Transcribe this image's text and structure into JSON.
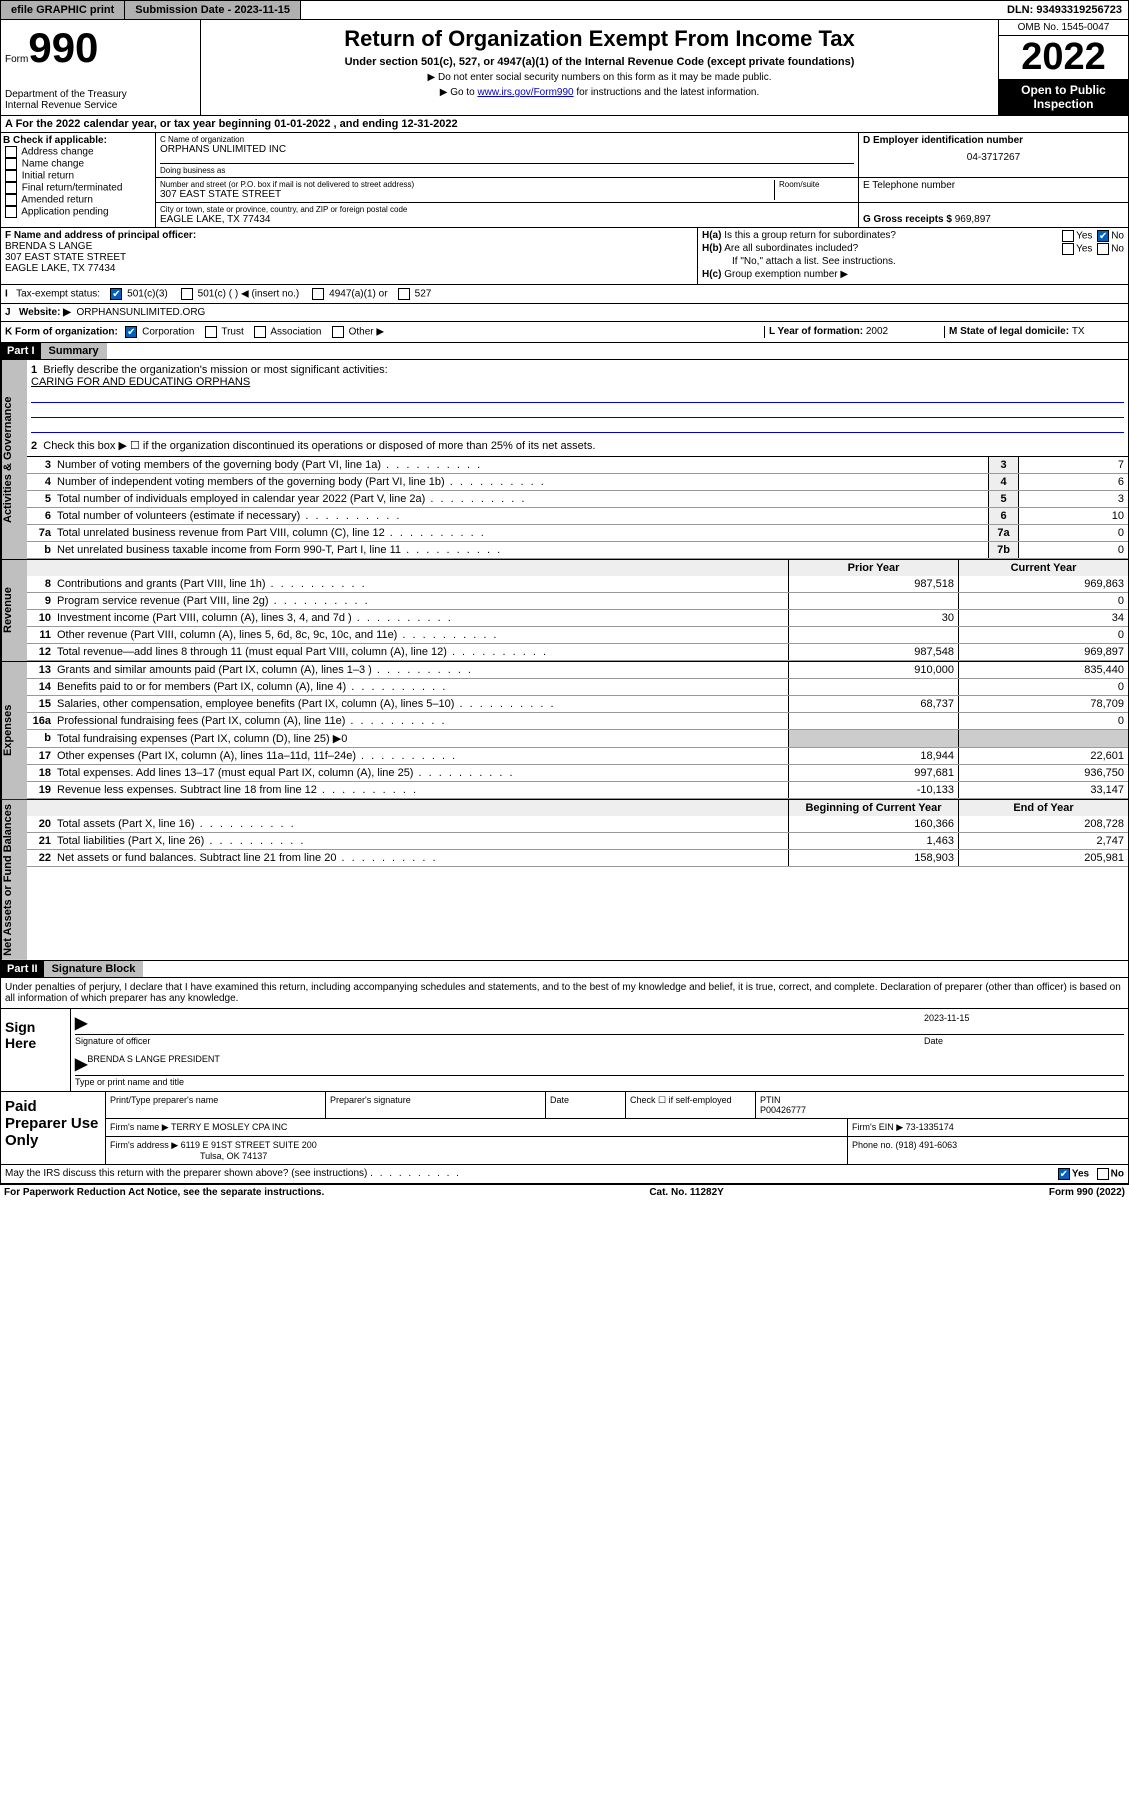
{
  "topbar": {
    "efile": "efile GRAPHIC print",
    "submission_label": "Submission Date - ",
    "submission_date": "2023-11-15",
    "dln_label": "DLN: ",
    "dln": "93493319256723"
  },
  "header": {
    "form_word": "Form",
    "form_num": "990",
    "dept": "Department of the Treasury\nInternal Revenue Service",
    "title": "Return of Organization Exempt From Income Tax",
    "sub1": "Under section 501(c), 527, or 4947(a)(1) of the Internal Revenue Code (except private foundations)",
    "sub2": "▶ Do not enter social security numbers on this form as it may be made public.",
    "sub3_prefix": "▶ Go to ",
    "sub3_link": "www.irs.gov/Form990",
    "sub3_suffix": " for instructions and the latest information.",
    "omb": "OMB No. 1545-0047",
    "year": "2022",
    "open": "Open to Public Inspection"
  },
  "row_a": "A For the 2022 calendar year, or tax year beginning 01-01-2022   , and ending 12-31-2022",
  "col_b": {
    "label": "B Check if applicable:",
    "opts": [
      "Address change",
      "Name change",
      "Initial return",
      "Final return/terminated",
      "Amended return",
      "Application pending"
    ]
  },
  "box_c_label": "C Name of organization",
  "org_name": "ORPHANS UNLIMITED INC",
  "dba_label": "Doing business as",
  "street_label": "Number and street (or P.O. box if mail is not delivered to street address)",
  "room_label": "Room/suite",
  "street": "307 EAST STATE STREET",
  "city_label": "City or town, state or province, country, and ZIP or foreign postal code",
  "city": "EAGLE LAKE, TX  77434",
  "box_d_label": "D Employer identification number",
  "ein": "04-3717267",
  "box_e_label": "E Telephone number",
  "box_g_label": "G Gross receipts $ ",
  "gross_receipts": "969,897",
  "box_f_label": "F Name and address of principal officer:",
  "officer_name": "BRENDA S LANGE",
  "officer_addr1": "307 EAST STATE STREET",
  "officer_addr2": "EAGLE LAKE, TX  77434",
  "h_a": "Is this a group return for subordinates?",
  "h_b": "Are all subordinates included?",
  "h_b_note": "If \"No,\" attach a list. See instructions.",
  "h_c": "Group exemption number ▶",
  "yes": "Yes",
  "no": "No",
  "row_i_label": "Tax-exempt status:",
  "i_501c3": "501(c)(3)",
  "i_501c": "501(c) (   ) ◀ (insert no.)",
  "i_4947": "4947(a)(1) or",
  "i_527": "527",
  "row_j_label": "Website: ▶",
  "website": "ORPHANSUNLIMITED.ORG",
  "row_k_label": "K Form of organization:",
  "k_corp": "Corporation",
  "k_trust": "Trust",
  "k_assoc": "Association",
  "k_other": "Other ▶",
  "l_label": "L Year of formation: ",
  "l_year": "2002",
  "m_label": "M State of legal domicile: ",
  "m_state": "TX",
  "part1_hdr": "Part I",
  "part1_title": "Summary",
  "q1_label": "Briefly describe the organization's mission or most significant activities:",
  "mission": "CARING FOR AND EDUCATING ORPHANS",
  "q2": "Check this box ▶ ☐  if the organization discontinued its operations or disposed of more than 25% of its net assets.",
  "vtabs": {
    "gov": "Activities & Governance",
    "rev": "Revenue",
    "exp": "Expenses",
    "net": "Net Assets or Fund Balances"
  },
  "gov_lines": [
    {
      "n": "3",
      "d": "Number of voting members of the governing body (Part VI, line 1a)",
      "b": "3",
      "v": "7"
    },
    {
      "n": "4",
      "d": "Number of independent voting members of the governing body (Part VI, line 1b)",
      "b": "4",
      "v": "6"
    },
    {
      "n": "5",
      "d": "Total number of individuals employed in calendar year 2022 (Part V, line 2a)",
      "b": "5",
      "v": "3"
    },
    {
      "n": "6",
      "d": "Total number of volunteers (estimate if necessary)",
      "b": "6",
      "v": "10"
    },
    {
      "n": "7a",
      "d": "Total unrelated business revenue from Part VIII, column (C), line 12",
      "b": "7a",
      "v": "0"
    },
    {
      "n": "b",
      "d": "Net unrelated business taxable income from Form 990-T, Part I, line 11",
      "b": "7b",
      "v": "0"
    }
  ],
  "cols_hdr": {
    "prior": "Prior Year",
    "current": "Current Year",
    "begin": "Beginning of Current Year",
    "end": "End of Year"
  },
  "rev_lines": [
    {
      "n": "8",
      "d": "Contributions and grants (Part VIII, line 1h)",
      "p": "987,518",
      "c": "969,863"
    },
    {
      "n": "9",
      "d": "Program service revenue (Part VIII, line 2g)",
      "p": "",
      "c": "0"
    },
    {
      "n": "10",
      "d": "Investment income (Part VIII, column (A), lines 3, 4, and 7d )",
      "p": "30",
      "c": "34"
    },
    {
      "n": "11",
      "d": "Other revenue (Part VIII, column (A), lines 5, 6d, 8c, 9c, 10c, and 11e)",
      "p": "",
      "c": "0"
    },
    {
      "n": "12",
      "d": "Total revenue—add lines 8 through 11 (must equal Part VIII, column (A), line 12)",
      "p": "987,548",
      "c": "969,897"
    }
  ],
  "exp_lines": [
    {
      "n": "13",
      "d": "Grants and similar amounts paid (Part IX, column (A), lines 1–3 )",
      "p": "910,000",
      "c": "835,440"
    },
    {
      "n": "14",
      "d": "Benefits paid to or for members (Part IX, column (A), line 4)",
      "p": "",
      "c": "0"
    },
    {
      "n": "15",
      "d": "Salaries, other compensation, employee benefits (Part IX, column (A), lines 5–10)",
      "p": "68,737",
      "c": "78,709"
    },
    {
      "n": "16a",
      "d": "Professional fundraising fees (Part IX, column (A), line 11e)",
      "p": "",
      "c": "0"
    },
    {
      "n": "b",
      "d": "Total fundraising expenses (Part IX, column (D), line 25) ▶0",
      "p": "—",
      "c": "—"
    },
    {
      "n": "17",
      "d": "Other expenses (Part IX, column (A), lines 11a–11d, 11f–24e)",
      "p": "18,944",
      "c": "22,601"
    },
    {
      "n": "18",
      "d": "Total expenses. Add lines 13–17 (must equal Part IX, column (A), line 25)",
      "p": "997,681",
      "c": "936,750"
    },
    {
      "n": "19",
      "d": "Revenue less expenses. Subtract line 18 from line 12",
      "p": "-10,133",
      "c": "33,147"
    }
  ],
  "net_lines": [
    {
      "n": "20",
      "d": "Total assets (Part X, line 16)",
      "p": "160,366",
      "c": "208,728"
    },
    {
      "n": "21",
      "d": "Total liabilities (Part X, line 26)",
      "p": "1,463",
      "c": "2,747"
    },
    {
      "n": "22",
      "d": "Net assets or fund balances. Subtract line 21 from line 20",
      "p": "158,903",
      "c": "205,981"
    }
  ],
  "part2_hdr": "Part II",
  "part2_title": "Signature Block",
  "perjury": "Under penalties of perjury, I declare that I have examined this return, including accompanying schedules and statements, and to the best of my knowledge and belief, it is true, correct, and complete. Declaration of preparer (other than officer) is based on all information of which preparer has any knowledge.",
  "sign_here": "Sign Here",
  "sig_officer_label": "Signature of officer",
  "sig_date_label": "Date",
  "sig_date": "2023-11-15",
  "sig_name": "BRENDA S LANGE  PRESIDENT",
  "sig_name_label": "Type or print name and title",
  "paid_label": "Paid Preparer Use Only",
  "prep_name_label": "Print/Type preparer's name",
  "prep_sig_label": "Preparer's signature",
  "prep_date_label": "Date",
  "prep_check": "Check ☐ if self-employed",
  "ptin_label": "PTIN",
  "ptin": "P00426777",
  "firm_name_label": "Firm's name  ▶",
  "firm_name": "TERRY E MOSLEY CPA INC",
  "firm_ein_label": "Firm's EIN ▶",
  "firm_ein": "73-1335174",
  "firm_addr_label": "Firm's address ▶",
  "firm_addr": "6119 E 91ST STREET SUITE 200",
  "firm_city": "Tulsa, OK  74137",
  "phone_label": "Phone no. ",
  "phone": "(918) 491-6063",
  "discuss": "May the IRS discuss this return with the preparer shown above? (see instructions)",
  "footer_left": "For Paperwork Reduction Act Notice, see the separate instructions.",
  "footer_mid": "Cat. No. 11282Y",
  "footer_right": "Form 990 (2022)"
}
